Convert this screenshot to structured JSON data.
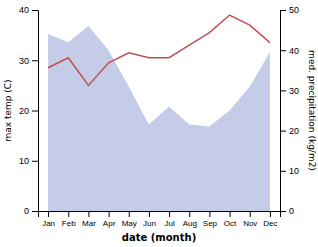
{
  "chart_data": {
    "type": "line",
    "categories": [
      "Jan",
      "Feb",
      "Mar",
      "Apr",
      "May",
      "Jun",
      "Jul",
      "Aug",
      "Sep",
      "Oct",
      "Nov",
      "Dec"
    ],
    "series": [
      {
        "type": "area",
        "axis": "y2",
        "color": "#c5cce8",
        "values": [
          44.0,
          42.0,
          46.0,
          40.0,
          31.0,
          21.5,
          26.0,
          21.5,
          21.0,
          25.0,
          31.0,
          39.5
        ]
      },
      {
        "type": "line",
        "color": "#c0504d",
        "values": [
          28.5,
          30.5,
          25.0,
          29.5,
          31.5,
          30.5,
          30.5,
          33.0,
          35.5,
          39.0,
          37.0,
          33.5
        ]
      }
    ],
    "xlabel": "date (month)",
    "ylabel": "max temp (C)",
    "y2label": "med. precipitation (kg/m2)",
    "ylim": [
      0,
      40
    ],
    "yticks": [
      0,
      10,
      20,
      30,
      40
    ],
    "y2lim": [
      0,
      50
    ],
    "y2ticks": [
      0,
      10,
      20,
      30,
      40,
      50
    ],
    "grid": false
  }
}
